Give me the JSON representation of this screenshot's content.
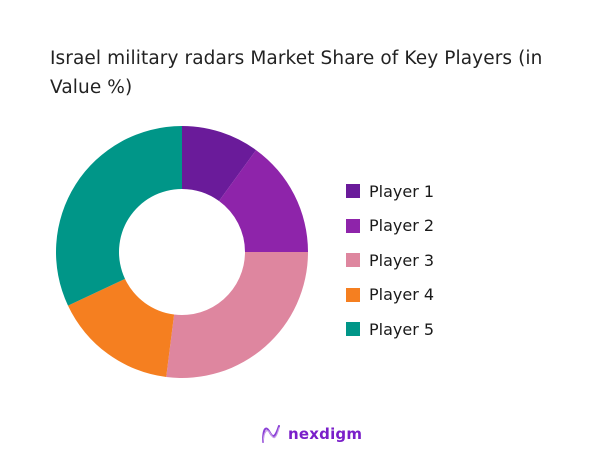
{
  "title": "Israel military radars Market Share of Key Players (in Value %)",
  "chart_data": {
    "type": "pie",
    "subtype": "donut",
    "title": "Israel military radars Market Share of Key Players (in Value %)",
    "categories": [
      "Player 1",
      "Player 2",
      "Player 3",
      "Player 4",
      "Player 5"
    ],
    "values": [
      10,
      15,
      27,
      16,
      32
    ],
    "colors": [
      "#6a1b9a",
      "#8e24aa",
      "#de869f",
      "#f57f20",
      "#009688"
    ],
    "start_angle": 0,
    "direction": "clockwise",
    "legend_position": "right"
  },
  "legend": [
    {
      "label": "Player 1",
      "color": "#6a1b9a"
    },
    {
      "label": "Player 2",
      "color": "#8e24aa"
    },
    {
      "label": "Player 3",
      "color": "#de869f"
    },
    {
      "label": "Player 4",
      "color": "#f57f20"
    },
    {
      "label": "Player 5",
      "color": "#009688"
    }
  ],
  "footer": {
    "brand": "nexdigm"
  }
}
